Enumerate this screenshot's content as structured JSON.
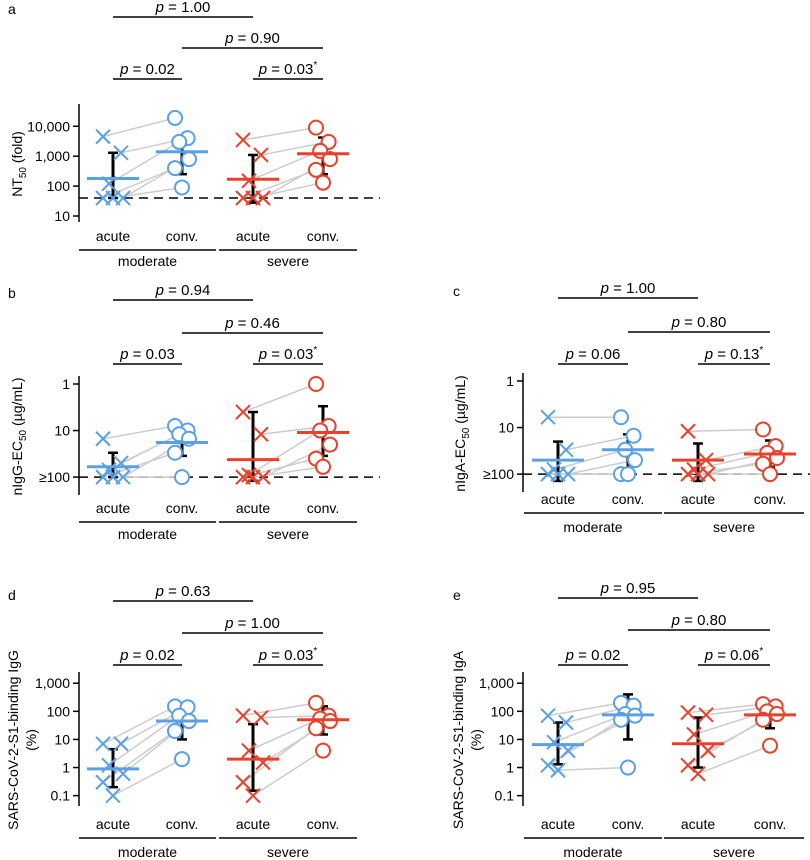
{
  "colors": {
    "moderate": "#5aa0e6",
    "severe": "#e8402a",
    "pair_line": "#cccccc",
    "axis": "#000000"
  },
  "chart_data": [
    {
      "panel": "a",
      "type": "scatter",
      "scale": "log",
      "ylabel_main": "NT",
      "ylabel_sub": "50",
      "ylabel_tail": " (fold)",
      "yticks": [
        10,
        100,
        1000,
        10000
      ],
      "yticklabels": [
        "10",
        "100",
        "1,000",
        "10,000"
      ],
      "ylim": [
        10,
        30000
      ],
      "threshold": 40,
      "groups": [
        "acute",
        "conv.",
        "acute",
        "conv."
      ],
      "conditions": [
        "moderate",
        "severe"
      ],
      "pvalues": [
        "p = 1.00",
        "p = 0.90",
        "p = 0.02",
        "p = 0.03*"
      ],
      "series": [
        {
          "condition": "moderate",
          "acute": [
            4500,
            1300,
            120,
            40,
            40,
            40
          ],
          "conv": [
            19000,
            4000,
            3000,
            800,
            400,
            90
          ],
          "acute_median": 180,
          "acute_err": [
            40,
            1300
          ],
          "conv_median": 1400,
          "conv_err": [
            250,
            5000
          ]
        },
        {
          "condition": "severe",
          "acute": [
            3500,
            1100,
            150,
            40,
            40,
            40
          ],
          "conv": [
            9000,
            3000,
            1500,
            800,
            350,
            130
          ],
          "acute_median": 170,
          "acute_err": [
            28,
            1100
          ],
          "conv_median": 1200,
          "conv_err": [
            250,
            4200
          ]
        }
      ]
    },
    {
      "panel": "b",
      "type": "scatter",
      "scale": "log_reversed",
      "ylabel_main": "nIgG-EC",
      "ylabel_sub": "50",
      "ylabel_tail": " (µg/mL)",
      "yticks": [
        1,
        10,
        100
      ],
      "yticklabels": [
        "1",
        "10",
        "≥100"
      ],
      "ylim": [
        1,
        180
      ],
      "threshold": 100,
      "groups": [
        "acute",
        "conv.",
        "acute",
        "conv."
      ],
      "conditions": [
        "moderate",
        "severe"
      ],
      "pvalues": [
        "p = 0.94",
        "p = 0.46",
        "p = 0.03",
        "p = 0.03*"
      ],
      "series": [
        {
          "condition": "moderate",
          "acute": [
            15,
            50,
            70,
            100,
            100,
            100
          ],
          "conv": [
            8,
            10,
            12,
            15,
            30,
            100
          ],
          "acute_median": 60,
          "acute_err": [
            30,
            100
          ],
          "conv_median": 18,
          "conv_err": [
            9,
            35
          ]
        },
        {
          "condition": "severe",
          "acute": [
            4,
            12,
            90,
            100,
            100,
            100
          ],
          "conv": [
            1,
            8,
            10,
            20,
            40,
            60
          ],
          "acute_median": 42,
          "acute_err": [
            4,
            120
          ],
          "conv_median": 11,
          "conv_err": [
            3,
            35
          ]
        }
      ]
    },
    {
      "panel": "c",
      "type": "scatter",
      "scale": "log_reversed",
      "ylabel_main": "nIgA-EC",
      "ylabel_sub": "50",
      "ylabel_tail": " (µg/mL)",
      "yticks": [
        1,
        10,
        100
      ],
      "yticklabels": [
        "1",
        "10",
        "≥100"
      ],
      "ylim": [
        1,
        180
      ],
      "threshold": 100,
      "groups": [
        "acute",
        "conv.",
        "acute",
        "conv."
      ],
      "conditions": [
        "moderate",
        "severe"
      ],
      "pvalues": [
        "p = 1.00",
        "p = 0.80",
        "p = 0.06",
        "p = 0.13*"
      ],
      "series": [
        {
          "condition": "moderate",
          "acute": [
            6,
            30,
            80,
            100,
            100,
            100
          ],
          "conv": [
            6,
            15,
            30,
            50,
            100,
            100
          ],
          "acute_median": 50,
          "acute_err": [
            20,
            140
          ],
          "conv_median": 30,
          "conv_err": [
            14,
            90
          ]
        },
        {
          "condition": "severe",
          "acute": [
            12,
            50,
            80,
            100,
            100,
            100
          ],
          "conv": [
            11,
            25,
            35,
            45,
            60,
            100
          ],
          "acute_median": 50,
          "acute_err": [
            22,
            140
          ],
          "conv_median": 37,
          "conv_err": [
            19,
            70
          ]
        }
      ]
    },
    {
      "panel": "d",
      "type": "scatter",
      "scale": "log",
      "ylabel_main": "SARS-CoV-2-S1-binding IgG",
      "ylabel_sub": "",
      "ylabel_tail": "",
      "ylabel_unit": "(%)",
      "yticks": [
        0.1,
        1,
        10,
        100,
        1000
      ],
      "yticklabels": [
        "0.1",
        "1",
        "10",
        "100",
        "1,000"
      ],
      "ylim": [
        0.07,
        1300
      ],
      "threshold": null,
      "groups": [
        "acute",
        "conv.",
        "acute",
        "conv."
      ],
      "conditions": [
        "moderate",
        "severe"
      ],
      "pvalues": [
        "p = 0.63",
        "p = 1.00",
        "p = 0.02",
        "p = 0.03*"
      ],
      "series": [
        {
          "condition": "moderate",
          "acute": [
            7,
            7,
            1.2,
            0.6,
            0.3,
            0.1
          ],
          "conv": [
            150,
            140,
            70,
            45,
            20,
            2
          ],
          "acute_median": 0.9,
          "acute_err": [
            0.2,
            4.5
          ],
          "conv_median": 45,
          "conv_err": [
            10,
            180
          ]
        },
        {
          "condition": "severe",
          "acute": [
            70,
            60,
            4,
            1.5,
            0.3,
            0.1
          ],
          "conv": [
            200,
            70,
            55,
            45,
            25,
            4
          ],
          "acute_median": 2,
          "acute_err": [
            0.15,
            35
          ],
          "conv_median": 50,
          "conv_err": [
            15,
            150
          ]
        }
      ]
    },
    {
      "panel": "e",
      "type": "scatter",
      "scale": "log",
      "ylabel_main": "SARS-CoV-2-S1-binding IgA",
      "ylabel_sub": "",
      "ylabel_tail": "",
      "ylabel_unit": "(%)",
      "yticks": [
        0.1,
        1,
        10,
        100,
        1000
      ],
      "yticklabels": [
        "0.1",
        "1",
        "10",
        "100",
        "1,000"
      ],
      "ylim": [
        0.07,
        1300
      ],
      "threshold": null,
      "groups": [
        "acute",
        "conv.",
        "acute",
        "conv."
      ],
      "conditions": [
        "moderate",
        "severe"
      ],
      "pvalues": [
        "p = 0.95",
        "p = 0.80",
        "p = 0.02",
        "p = 0.06*"
      ],
      "series": [
        {
          "condition": "moderate",
          "acute": [
            70,
            40,
            8,
            4,
            1.2,
            0.8
          ],
          "conv": [
            200,
            160,
            80,
            70,
            50,
            1
          ],
          "acute_median": 6.5,
          "acute_err": [
            1.3,
            40
          ],
          "conv_median": 75,
          "conv_err": [
            10,
            400
          ]
        },
        {
          "condition": "severe",
          "acute": [
            90,
            75,
            15,
            4,
            1.2,
            0.6
          ],
          "conv": [
            180,
            150,
            100,
            80,
            50,
            6
          ],
          "acute_median": 7,
          "acute_err": [
            1,
            60
          ],
          "conv_median": 75,
          "conv_err": [
            25,
            200
          ]
        }
      ]
    }
  ]
}
